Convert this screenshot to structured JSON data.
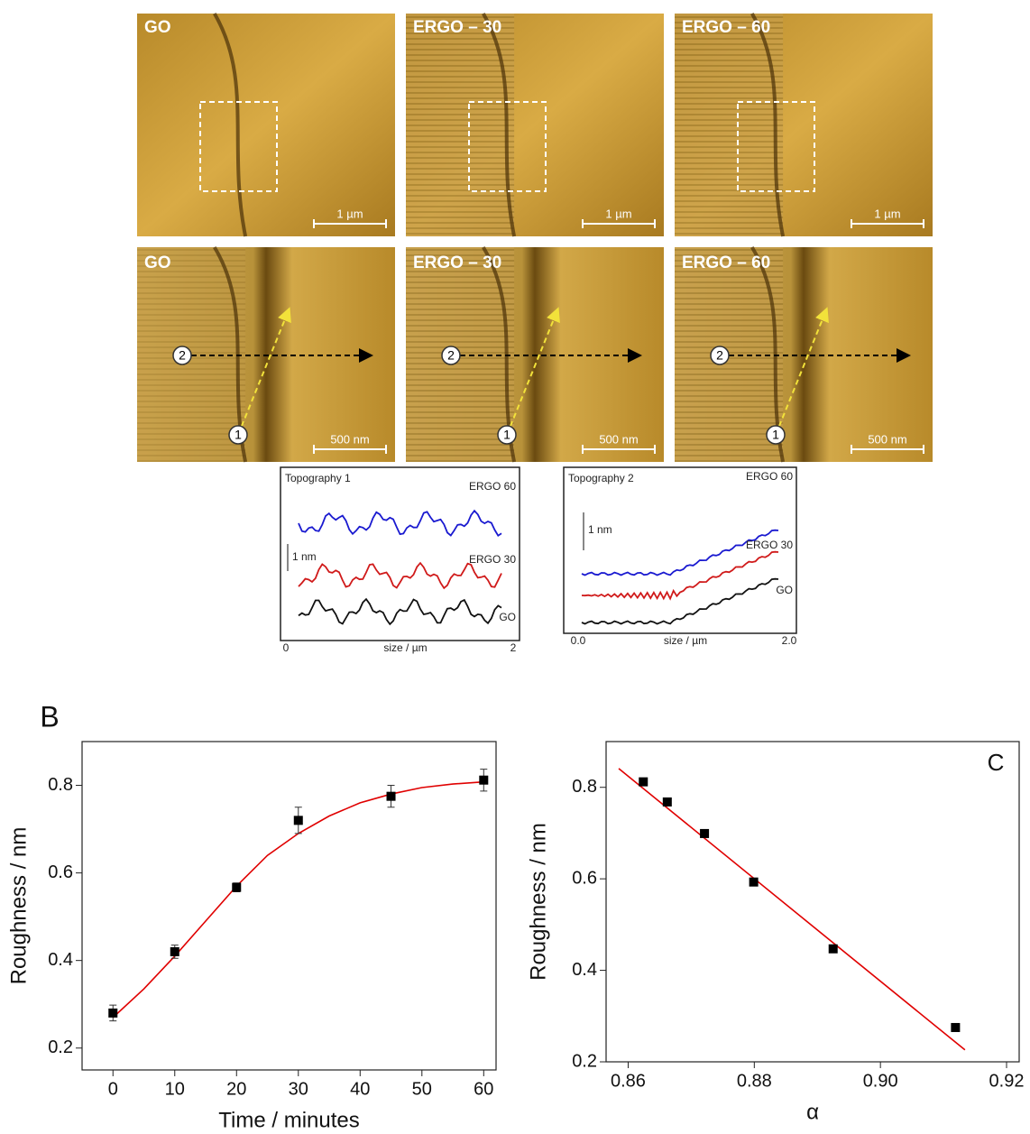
{
  "images": [
    {
      "label": "GO",
      "scale_bar": "1 µm"
    },
    {
      "label": "ERGO – 30",
      "scale_bar": "1 µm"
    },
    {
      "label": "ERGO – 60",
      "scale_bar": "1 µm"
    },
    {
      "label": "GO",
      "scale_bar": "500 nm"
    },
    {
      "label": "ERGO – 30",
      "scale_bar": "500 nm"
    },
    {
      "label": "ERGO – 60",
      "scale_bar": "500 nm"
    }
  ],
  "markers": [
    "1",
    "2"
  ],
  "insets": [
    {
      "title": "Topography 1",
      "series_labels": [
        "ERGO 60",
        "ERGO 30",
        "GO"
      ],
      "scale": "1 nm",
      "x_axis_label": "size / µm",
      "x_tick_labels": [
        "0",
        "2"
      ]
    },
    {
      "title": "Topography 2",
      "series_labels": [
        "ERGO 60",
        "ERGO 30",
        "GO"
      ],
      "scale": "1 nm",
      "x_axis_label": "size / µm",
      "x_tick_labels": [
        "0.0",
        "2.0"
      ]
    }
  ],
  "chart_data": [
    {
      "type": "scatter",
      "panel_label": "B",
      "x_label": "Time / minutes",
      "y_label": "Roughness / nm",
      "x": [
        0,
        10,
        20,
        30,
        45,
        60
      ],
      "values": [
        0.28,
        0.42,
        0.567,
        0.72,
        0.775,
        0.812
      ],
      "errors": [
        0.018,
        0.015,
        0.01,
        0.03,
        0.025,
        0.025
      ],
      "color": "#000000",
      "fit": {
        "x": [
          0,
          5,
          10,
          15,
          20,
          25,
          30,
          35,
          40,
          45,
          50,
          55,
          60
        ],
        "values": [
          0.27,
          0.335,
          0.41,
          0.49,
          0.57,
          0.64,
          0.69,
          0.73,
          0.76,
          0.78,
          0.795,
          0.803,
          0.808
        ],
        "color": "#e00000"
      },
      "xlim": [
        -5,
        62
      ],
      "ylim": [
        0.15,
        0.9
      ],
      "xticks": [
        0,
        10,
        20,
        30,
        40,
        50,
        60
      ],
      "yticks": [
        0.2,
        0.4,
        0.6,
        0.8
      ]
    },
    {
      "type": "scatter",
      "panel_label": "C",
      "x_label": "α",
      "y_label": "Roughness / nm",
      "x": [
        0.8624,
        0.8662,
        0.8721,
        0.8799,
        0.8925,
        0.9119
      ],
      "values": [
        0.812,
        0.768,
        0.699,
        0.593,
        0.447,
        0.275
      ],
      "color": "#000000",
      "fit": {
        "x": [
          0.8585,
          0.9134
        ],
        "values": [
          0.841,
          0.226
        ],
        "color": "#e00000"
      },
      "xlim": [
        0.8565,
        0.922
      ],
      "ylim": [
        0.2,
        0.9
      ],
      "xticks": [
        0.86,
        0.88,
        {
          "value": 0.9,
          "label": "0.90"
        },
        0.92
      ],
      "yticks": [
        0.2,
        0.4,
        0.6,
        0.8
      ]
    }
  ]
}
